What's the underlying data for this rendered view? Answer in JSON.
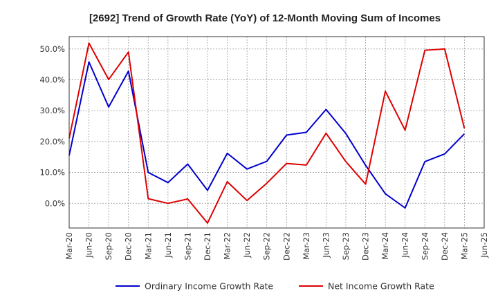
{
  "chart_data": {
    "type": "line",
    "title": "[2692]  Trend of Growth Rate (YoY) of 12-Month Moving Sum of Incomes",
    "xlabel": "",
    "ylabel": "",
    "x": [
      "Mar-20",
      "Jun-20",
      "Sep-20",
      "Dec-20",
      "Mar-21",
      "Jun-21",
      "Sep-21",
      "Dec-21",
      "Mar-22",
      "Jun-22",
      "Sep-22",
      "Dec-22",
      "Mar-23",
      "Jun-23",
      "Sep-23",
      "Dec-23",
      "Mar-24",
      "Jun-24",
      "Sep-24",
      "Dec-24",
      "Mar-25",
      "Jun-25"
    ],
    "ylim": [
      -8,
      54
    ],
    "yticks": [
      0,
      10,
      20,
      30,
      40,
      50
    ],
    "ytick_labels": [
      "0.0%",
      "10.0%",
      "20.0%",
      "30.0%",
      "40.0%",
      "50.0%"
    ],
    "grid": true,
    "legend_position": "bottom",
    "series": [
      {
        "name": "Ordinary Income Growth Rate",
        "color": "#0000cc",
        "values": [
          15.5,
          45.8,
          31.2,
          42.8,
          10.0,
          6.7,
          12.7,
          4.2,
          16.2,
          11.1,
          13.6,
          22.1,
          23.0,
          30.4,
          22.6,
          12.3,
          3.1,
          -1.5,
          13.5,
          16.0,
          22.5,
          null
        ]
      },
      {
        "name": "Net Income Growth Rate",
        "color": "#dd0000",
        "values": [
          21.0,
          51.9,
          40.1,
          49.0,
          1.5,
          0.0,
          1.4,
          -6.4,
          7.0,
          0.9,
          6.5,
          12.9,
          12.4,
          22.7,
          13.5,
          6.2,
          36.3,
          23.7,
          49.6,
          50.0,
          24.3,
          null
        ]
      }
    ]
  }
}
